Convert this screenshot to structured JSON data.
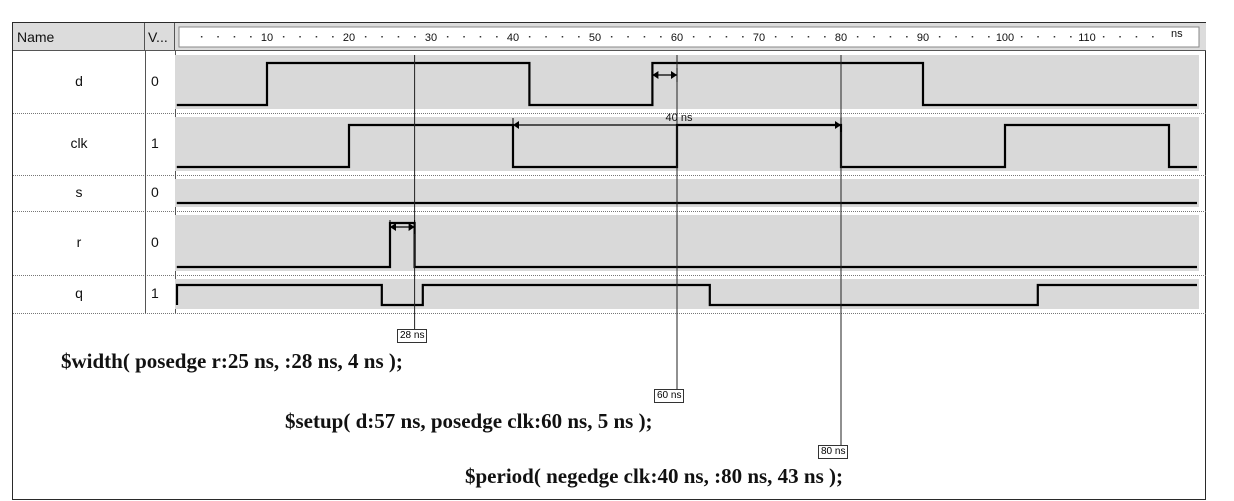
{
  "header": {
    "name_col": "Name",
    "value_col": "V...",
    "time_unit": "ns",
    "ruler_ticks": [
      "10",
      "20",
      "30",
      "40",
      "50",
      "60",
      "70",
      "80",
      "90",
      "100",
      "110"
    ]
  },
  "signals": [
    {
      "name": "d",
      "value": "0"
    },
    {
      "name": "clk",
      "value": "1"
    },
    {
      "name": "s",
      "value": "0"
    },
    {
      "name": "r",
      "value": "0"
    },
    {
      "name": "q",
      "value": "1"
    }
  ],
  "measurement": {
    "period_label": "40 ns"
  },
  "cursors": [
    {
      "label": "28 ns"
    },
    {
      "label": "60 ns"
    },
    {
      "label": "80 ns"
    }
  ],
  "checks": {
    "width": "$width( posedge r:25 ns, :28 ns, 4 ns );",
    "setup": "$setup( d:57 ns, posedge clk:60 ns, 5 ns );",
    "period": "$period( negedge clk:40 ns, :80 ns, 43 ns );"
  },
  "colors": {
    "wave_bg": "#d9d9d9",
    "wave_line": "#000000",
    "header_bg": "#dcdcdc"
  }
}
